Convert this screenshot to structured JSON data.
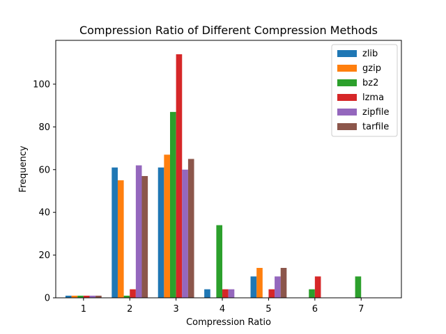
{
  "chart_data": {
    "type": "bar",
    "title": "Compression Ratio of Different Compression Methods",
    "xlabel": "Compression Ratio",
    "ylabel": "Frequency",
    "categories": [
      1,
      2,
      3,
      4,
      5,
      6,
      7
    ],
    "x_ticks": [
      "1",
      "2",
      "3",
      "4",
      "5",
      "6",
      "7"
    ],
    "xlim": [
      0.4,
      7.87
    ],
    "ylim": [
      0,
      120.5
    ],
    "y_ticks": [
      0,
      20,
      40,
      60,
      80,
      100
    ],
    "grid": false,
    "legend_position": "top-right",
    "series": [
      {
        "name": "zlib",
        "color": "#1f77b4",
        "values": [
          1,
          61,
          61,
          4,
          10,
          0,
          0
        ]
      },
      {
        "name": "gzip",
        "color": "#ff7f0e",
        "values": [
          1,
          55,
          67,
          0,
          14,
          0,
          0
        ]
      },
      {
        "name": "bz2",
        "color": "#2ca02c",
        "values": [
          1,
          1,
          87,
          34,
          0,
          4,
          10
        ]
      },
      {
        "name": "lzma",
        "color": "#d62728",
        "values": [
          1,
          4,
          114,
          4,
          4,
          10,
          0
        ]
      },
      {
        "name": "zipfile",
        "color": "#9467bd",
        "values": [
          1,
          62,
          60,
          4,
          10,
          0,
          0
        ]
      },
      {
        "name": "tarfile",
        "color": "#8c564b",
        "values": [
          1,
          57,
          65,
          0,
          14,
          0,
          0
        ]
      }
    ]
  }
}
